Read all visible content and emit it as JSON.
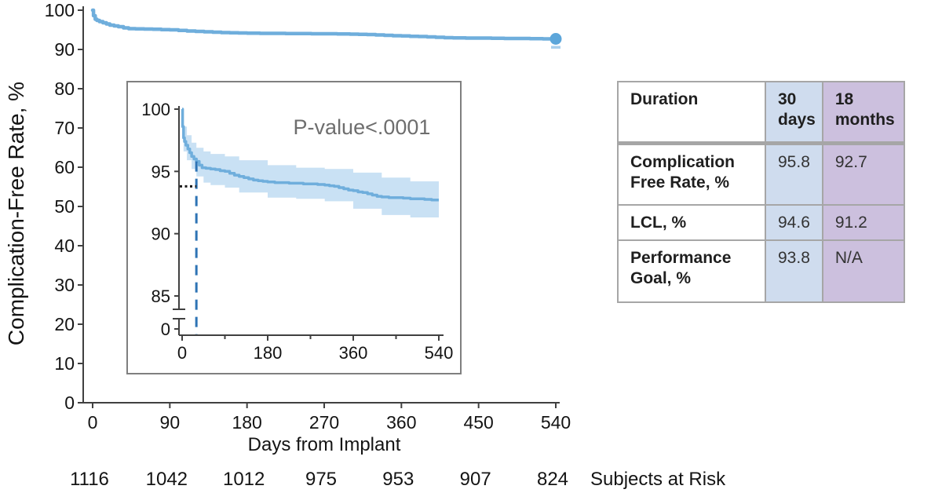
{
  "figure": {
    "subjects_label": "Subjects at Risk"
  },
  "chart_data": {
    "type": "line",
    "xlabel": "Days from Implant",
    "ylabel": "Complication-Free Rate, %",
    "xlim": [
      0,
      540
    ],
    "ylim": [
      0,
      100
    ],
    "x_ticks": [
      0,
      90,
      180,
      270,
      360,
      450,
      540
    ],
    "y_ticks": [
      0,
      10,
      20,
      30,
      40,
      50,
      60,
      70,
      80,
      90,
      100
    ],
    "grid": false,
    "series": [
      {
        "name": "Complication-Free Rate, %",
        "step": "after",
        "x": [
          0,
          1,
          3,
          5,
          8,
          12,
          16,
          20,
          25,
          30,
          36,
          42,
          50,
          60,
          70,
          80,
          90,
          100,
          110,
          120,
          130,
          140,
          150,
          160,
          170,
          180,
          195,
          210,
          225,
          240,
          255,
          270,
          285,
          300,
          310,
          320,
          330,
          340,
          350,
          360,
          370,
          380,
          390,
          400,
          410,
          420,
          435,
          450,
          465,
          480,
          495,
          510,
          525,
          540
        ],
        "y": [
          100,
          98.6,
          97.7,
          97.4,
          97.1,
          96.8,
          96.5,
          96.2,
          96.0,
          95.8,
          95.5,
          95.3,
          95.25,
          95.2,
          95.15,
          95.05,
          95.0,
          94.85,
          94.7,
          94.6,
          94.5,
          94.4,
          94.3,
          94.25,
          94.2,
          94.15,
          94.1,
          94.1,
          94.05,
          94.05,
          94.0,
          94.0,
          93.95,
          93.9,
          93.85,
          93.8,
          93.7,
          93.6,
          93.5,
          93.45,
          93.35,
          93.3,
          93.2,
          93.1,
          93.0,
          92.95,
          92.9,
          92.9,
          92.85,
          92.8,
          92.8,
          92.75,
          92.7,
          92.7
        ]
      }
    ],
    "confidence_band": {
      "x": [
        0,
        3,
        10,
        20,
        30,
        45,
        60,
        90,
        120,
        180,
        240,
        300,
        360,
        420,
        480,
        540
      ],
      "upper": [
        100,
        98.6,
        97.9,
        97.3,
        96.9,
        96.6,
        96.4,
        96.2,
        95.9,
        95.5,
        95.3,
        95.2,
        94.9,
        94.5,
        94.2,
        94.1
      ],
      "lower": [
        100,
        96.6,
        95.9,
        95.2,
        94.6,
        94.1,
        93.9,
        93.7,
        93.3,
        92.9,
        92.8,
        92.6,
        92.0,
        91.5,
        91.3,
        91.2
      ]
    },
    "end_marker": {
      "x": 540,
      "y": 92.7
    },
    "subjects_at_risk": [
      1116,
      1042,
      1012,
      975,
      953,
      907,
      824
    ],
    "inset": {
      "annotation": "P-value<.0001",
      "x_ticks": [
        0,
        180,
        360,
        540
      ],
      "x_minor_ticks": [
        90,
        270,
        450
      ],
      "y_ticks": [
        100,
        95,
        90,
        85
      ],
      "y_zero_label": "0",
      "axis_break": true,
      "vline_day": 30,
      "hline_value": 93.8
    },
    "colors": {
      "line": "#6FAEDC",
      "band": "#C9E1F4",
      "marker": "#5CA6DA",
      "marker_cap": "#A9CFEC",
      "vline": "#2E74B5",
      "hline": "#1a1a1a",
      "axis": "#404040",
      "annotation": "#6E6E6E"
    }
  },
  "table": {
    "col_headers": [
      "Duration",
      "30\ndays",
      "18\nmonths"
    ],
    "rows": [
      {
        "label": "Complication\nFree Rate, %",
        "day30": "95.8",
        "month18": "92.7"
      },
      {
        "label": "LCL, %",
        "day30": "94.6",
        "month18": "91.2"
      },
      {
        "label": "Performance\nGoal, %",
        "day30": "93.8",
        "month18": "N/A"
      }
    ]
  }
}
